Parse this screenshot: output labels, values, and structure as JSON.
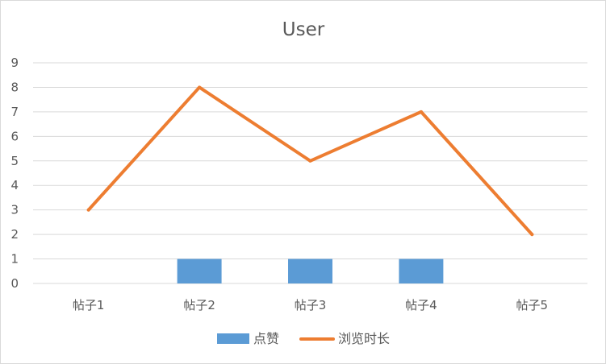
{
  "chart_data": {
    "type": "bar",
    "title": "User",
    "xlabel": "",
    "ylabel": "",
    "categories": [
      "帖子1",
      "帖子2",
      "帖子3",
      "帖子4",
      "帖子5"
    ],
    "series": [
      {
        "name": "点赞",
        "type": "bar",
        "color": "#5B9BD5",
        "values": [
          0,
          1,
          1,
          1,
          0
        ]
      },
      {
        "name": "浏览时长",
        "type": "line",
        "color": "#ED7D31",
        "values": [
          3,
          8,
          5,
          7,
          2
        ]
      }
    ],
    "ylim": [
      0,
      9
    ],
    "yticks": [
      "0",
      "1",
      "2",
      "3",
      "4",
      "5",
      "6",
      "7",
      "8",
      "9"
    ],
    "grid": true,
    "legend_position": "bottom"
  }
}
